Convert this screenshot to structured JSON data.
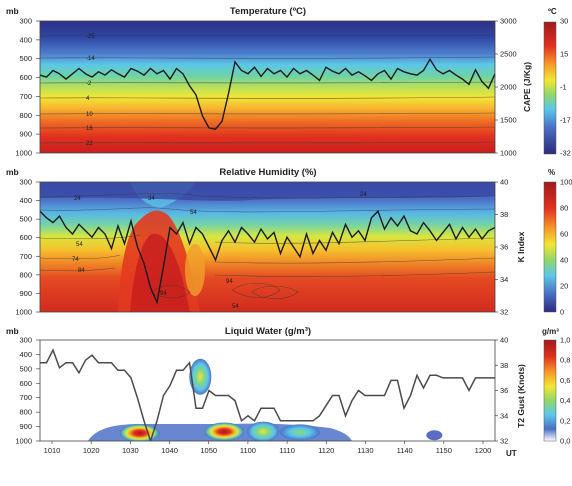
{
  "figure": {
    "panels": [
      {
        "id": "temperature",
        "title": "Temperature (ºC)",
        "left_unit": "mb",
        "left_ticks": [
          "300",
          "400",
          "500",
          "600",
          "700",
          "800",
          "900",
          "1000"
        ],
        "right_label": "CAPE (J/Kg)",
        "right_ticks": [
          "3000",
          "2500",
          "2000",
          "1500",
          "1000"
        ],
        "colorbar_unit": "ºC",
        "colorbar_ticks": [
          "30",
          "15",
          "-1",
          "-17",
          "-32"
        ],
        "contour_labels": [
          "-25",
          "-14",
          "-2",
          "4",
          "10",
          "16",
          "22"
        ]
      },
      {
        "id": "humidity",
        "title": "Relative Humidity (%)",
        "left_unit": "mb",
        "left_ticks": [
          "300",
          "400",
          "500",
          "600",
          "700",
          "800",
          "900",
          "1000"
        ],
        "right_label": "K Index",
        "right_ticks": [
          "40",
          "38",
          "36",
          "34",
          "32"
        ],
        "colorbar_unit": "%",
        "colorbar_ticks": [
          "100",
          "80",
          "60",
          "40",
          "20",
          "0"
        ],
        "contour_labels": [
          "24",
          "34",
          "54",
          "54",
          "74",
          "84",
          "94",
          "94",
          "24",
          "54"
        ]
      },
      {
        "id": "liquid",
        "title": "Liquid Water (g/m³)",
        "left_unit": "mb",
        "left_ticks": [
          "300",
          "400",
          "500",
          "600",
          "700",
          "800",
          "900",
          "1000"
        ],
        "right_label": "T2 Gust (Knots)",
        "right_ticks": [
          "40",
          "38",
          "36",
          "34",
          "32"
        ],
        "colorbar_unit": "g/m³",
        "colorbar_ticks": [
          "1,0",
          "0,8",
          "0,6",
          "0,4",
          "0,2",
          "0,0"
        ],
        "x_ticks": [
          "1010",
          "1020",
          "1030",
          "1040",
          "1050",
          "1100",
          "1110",
          "1120",
          "1130",
          "1140",
          "1150",
          "1200"
        ],
        "x_unit": "UT"
      }
    ]
  },
  "chart_data": [
    {
      "type": "heatmap",
      "title": "Temperature (ºC)",
      "ylabel": "mb",
      "y2label": "CAPE (J/Kg)",
      "ylim": [
        1000,
        300
      ],
      "y2lim": [
        1000,
        3000
      ],
      "colorbar_range": [
        -32,
        30
      ],
      "contour_levels": [
        -25,
        -14,
        -2,
        4,
        10,
        16,
        22
      ],
      "line_series": {
        "axis": "right",
        "x": [
          0,
          3,
          6,
          9,
          12,
          15,
          18,
          21,
          24,
          27,
          30,
          33,
          36,
          39,
          42,
          45,
          48,
          51,
          54,
          57,
          60,
          63,
          66,
          69,
          72,
          75,
          78,
          81,
          84,
          87,
          90,
          93,
          96,
          99,
          102,
          105,
          108,
          111,
          114,
          117,
          120,
          123,
          126,
          129,
          132,
          135,
          138,
          141,
          144,
          147,
          150,
          153,
          156,
          159,
          162,
          165,
          168,
          171,
          174,
          177,
          180,
          183,
          186,
          189,
          192,
          195,
          198,
          201,
          204,
          207,
          210
        ],
        "values": [
          2180,
          2150,
          2250,
          2200,
          2120,
          2200,
          2280,
          2200,
          2150,
          2230,
          2180,
          2260,
          2200,
          2150,
          2280,
          2240,
          2180,
          2280,
          2200,
          2250,
          2120,
          2280,
          2200,
          2020,
          1880,
          1560,
          1380,
          1360,
          1480,
          1900,
          2380,
          2250,
          2200,
          2300,
          2160,
          2280,
          2200,
          2250,
          2150,
          2280,
          2200,
          2250,
          2180,
          2100,
          2300,
          2240,
          2200,
          2280,
          2180,
          2230,
          2170,
          2100,
          2200,
          2250,
          2120,
          2280,
          2230,
          2200,
          2180,
          2250,
          2420,
          2260,
          2200,
          2250,
          2180,
          2120,
          2040,
          2260,
          2080,
          1980,
          2200
        ]
      }
    },
    {
      "type": "heatmap",
      "title": "Relative Humidity (%)",
      "ylabel": "mb",
      "y2label": "K Index",
      "ylim": [
        1000,
        300
      ],
      "y2lim": [
        32,
        40
      ],
      "colorbar_range": [
        0,
        100
      ],
      "contour_levels": [
        24,
        34,
        54,
        74,
        84,
        94
      ],
      "line_series": {
        "axis": "right",
        "x": [
          0,
          3,
          6,
          9,
          12,
          15,
          18,
          21,
          24,
          27,
          30,
          33,
          36,
          39,
          42,
          45,
          48,
          51,
          54,
          57,
          60,
          63,
          66,
          69,
          72,
          75,
          78,
          81,
          84,
          87,
          90,
          93,
          96,
          99,
          102,
          105,
          108,
          111,
          114,
          117,
          120,
          123,
          126,
          129,
          132,
          135,
          138,
          141,
          144,
          147,
          150,
          153,
          156,
          159,
          162,
          165,
          168,
          171,
          174,
          177,
          180,
          183,
          186,
          189,
          192,
          195,
          198,
          201,
          204,
          207,
          210
        ],
        "values": [
          38.2,
          37.8,
          37.5,
          37.9,
          37.2,
          36.8,
          37.4,
          37.0,
          36.6,
          37.2,
          36.8,
          35.9,
          37.3,
          36.2,
          37.6,
          36.0,
          35.0,
          33.5,
          32.6,
          34.8,
          37.2,
          36.8,
          37.5,
          36.2,
          37.2,
          36.8,
          36.0,
          35.2,
          36.4,
          37.0,
          36.3,
          37.2,
          36.8,
          36.3,
          37.1,
          36.5,
          36.9,
          35.6,
          36.6,
          36.0,
          35.4,
          36.8,
          35.6,
          36.4,
          35.8,
          36.9,
          36.2,
          37.4,
          36.6,
          37.0,
          36.4,
          37.8,
          38.2,
          37.1,
          37.8,
          37.3,
          37.9,
          37.0,
          36.8,
          37.5,
          37.0,
          36.4,
          36.9,
          37.4,
          36.5,
          37.2,
          36.6,
          37.1,
          36.5,
          37.0,
          37.2
        ]
      }
    },
    {
      "type": "heatmap",
      "title": "Liquid Water (g/m³)",
      "ylabel": "mb",
      "y2label": "T2 Gust (Knots)",
      "ylim": [
        1000,
        300
      ],
      "y2lim": [
        32,
        40
      ],
      "colorbar_range": [
        0.0,
        1.0
      ],
      "xlabel": "UT",
      "x_tick_labels": [
        "1010",
        "1020",
        "1030",
        "1040",
        "1050",
        "1100",
        "1110",
        "1120",
        "1130",
        "1140",
        "1150",
        "1200"
      ],
      "line_series": {
        "axis": "right",
        "x": [
          0,
          3,
          6,
          9,
          12,
          15,
          18,
          21,
          24,
          27,
          30,
          33,
          36,
          39,
          42,
          45,
          48,
          51,
          54,
          57,
          60,
          63,
          66,
          69,
          72,
          75,
          78,
          81,
          84,
          87,
          90,
          93,
          96,
          99,
          102,
          105,
          108,
          111,
          114,
          117,
          120,
          123,
          126,
          129,
          132,
          135,
          138,
          141,
          144,
          147,
          150,
          153,
          156,
          159,
          162,
          165,
          168,
          171,
          174,
          177,
          180,
          183,
          186,
          189,
          192,
          195,
          198,
          201,
          204,
          207,
          210
        ],
        "values": [
          38.2,
          38.2,
          39.2,
          37.8,
          38.2,
          38.2,
          37.4,
          38.4,
          38.8,
          38.2,
          38.2,
          38.2,
          37.6,
          37.6,
          37.0,
          35.4,
          33.6,
          32.0,
          33.6,
          35.6,
          36.4,
          37.6,
          37.6,
          38.2,
          34.6,
          34.6,
          36.0,
          35.6,
          35.6,
          35.6,
          35.2,
          33.6,
          34.0,
          33.6,
          34.6,
          34.6,
          34.6,
          33.6,
          33.6,
          33.6,
          33.6,
          33.6,
          33.6,
          34.0,
          34.8,
          35.6,
          35.6,
          34.0,
          35.2,
          36.0,
          35.6,
          35.6,
          35.6,
          35.6,
          36.8,
          36.8,
          34.6,
          35.6,
          37.2,
          36.2,
          37.2,
          37.2,
          37.0,
          37.0,
          37.0,
          37.0,
          36.0,
          37.0,
          37.0,
          37.0,
          37.0
        ]
      },
      "liquid_water_cells": [
        {
          "x_center": 46,
          "pressure_center": 945,
          "peak": 1.0
        },
        {
          "x_center": 74,
          "pressure_center": 555,
          "peak": 0.55
        },
        {
          "x_center": 85,
          "pressure_center": 935,
          "peak": 1.0
        },
        {
          "x_center": 103,
          "pressure_center": 935,
          "peak": 0.7
        },
        {
          "x_center": 120,
          "pressure_center": 940,
          "peak": 0.35
        },
        {
          "x_center": 182,
          "pressure_center": 960,
          "peak": 0.05
        }
      ]
    }
  ]
}
